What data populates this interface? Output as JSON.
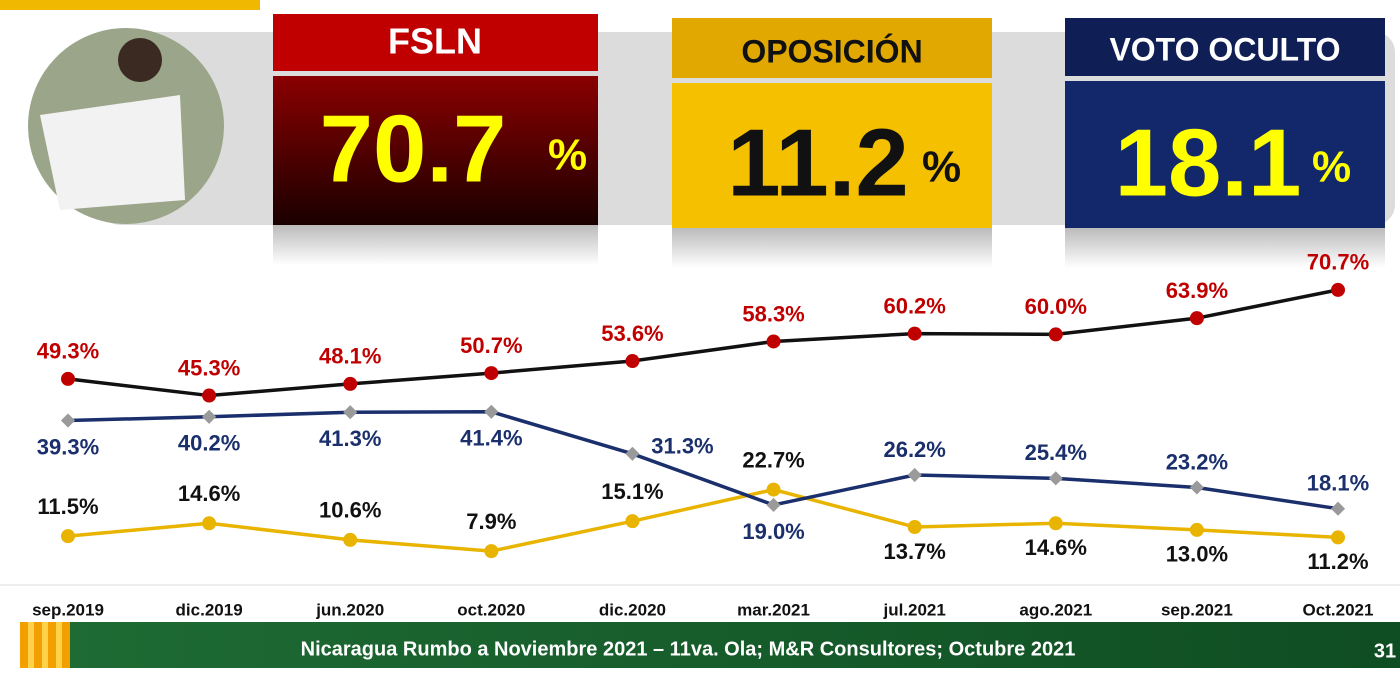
{
  "chart_data": {
    "type": "line",
    "categories": [
      "sep.2019",
      "dic.2019",
      "jun.2020",
      "oct.2020",
      "dic.2020",
      "mar.2021",
      "jul.2021",
      "ago.2021",
      "sep.2021",
      "Oct.2021"
    ],
    "unit": "%",
    "series": [
      {
        "name": "FSLN",
        "color": "#111111",
        "marker_color": "#c00000",
        "label_color": "#c00000",
        "headline": 70.7,
        "values": [
          49.3,
          45.3,
          48.1,
          50.7,
          53.6,
          58.3,
          60.2,
          60.0,
          63.9,
          70.7
        ],
        "value_labels": [
          "49.3%",
          "45.3%",
          "48.1%",
          "50.7%",
          "53.6%",
          "58.3%",
          "60.2%",
          "60.0%",
          "63.9%",
          "70.7%"
        ]
      },
      {
        "name": "OPOSICIÓN",
        "color": "#e8b400",
        "marker_color": "#e8b400",
        "label_color": "#111111",
        "headline": 11.2,
        "values": [
          11.5,
          14.6,
          10.6,
          7.9,
          15.1,
          22.7,
          13.7,
          14.6,
          13.0,
          11.2
        ],
        "value_labels": [
          "11.5%",
          "14.6%",
          "10.6%",
          "7.9%",
          "15.1%",
          "22.7%",
          "13.7%",
          "14.6%",
          "13.0%",
          "11.2%"
        ]
      },
      {
        "name": "VOTO OCULTO",
        "color": "#1a2f6b",
        "marker_color": "#9a9a9a",
        "label_color": "#1a2f6b",
        "headline": 18.1,
        "values": [
          39.3,
          40.2,
          41.3,
          41.4,
          31.3,
          19.0,
          26.2,
          25.4,
          23.2,
          18.1
        ],
        "value_labels": [
          "39.3%",
          "40.2%",
          "41.3%",
          "41.4%",
          "31.3%",
          "19.0%",
          "26.2%",
          "25.4%",
          "23.2%",
          "18.1%"
        ]
      }
    ]
  },
  "footer": {
    "text": "Nicaragua Rumbo a Noviembre 2021 – 11va. Ola; M&R Consultores; Octubre 2021",
    "page": "31"
  }
}
